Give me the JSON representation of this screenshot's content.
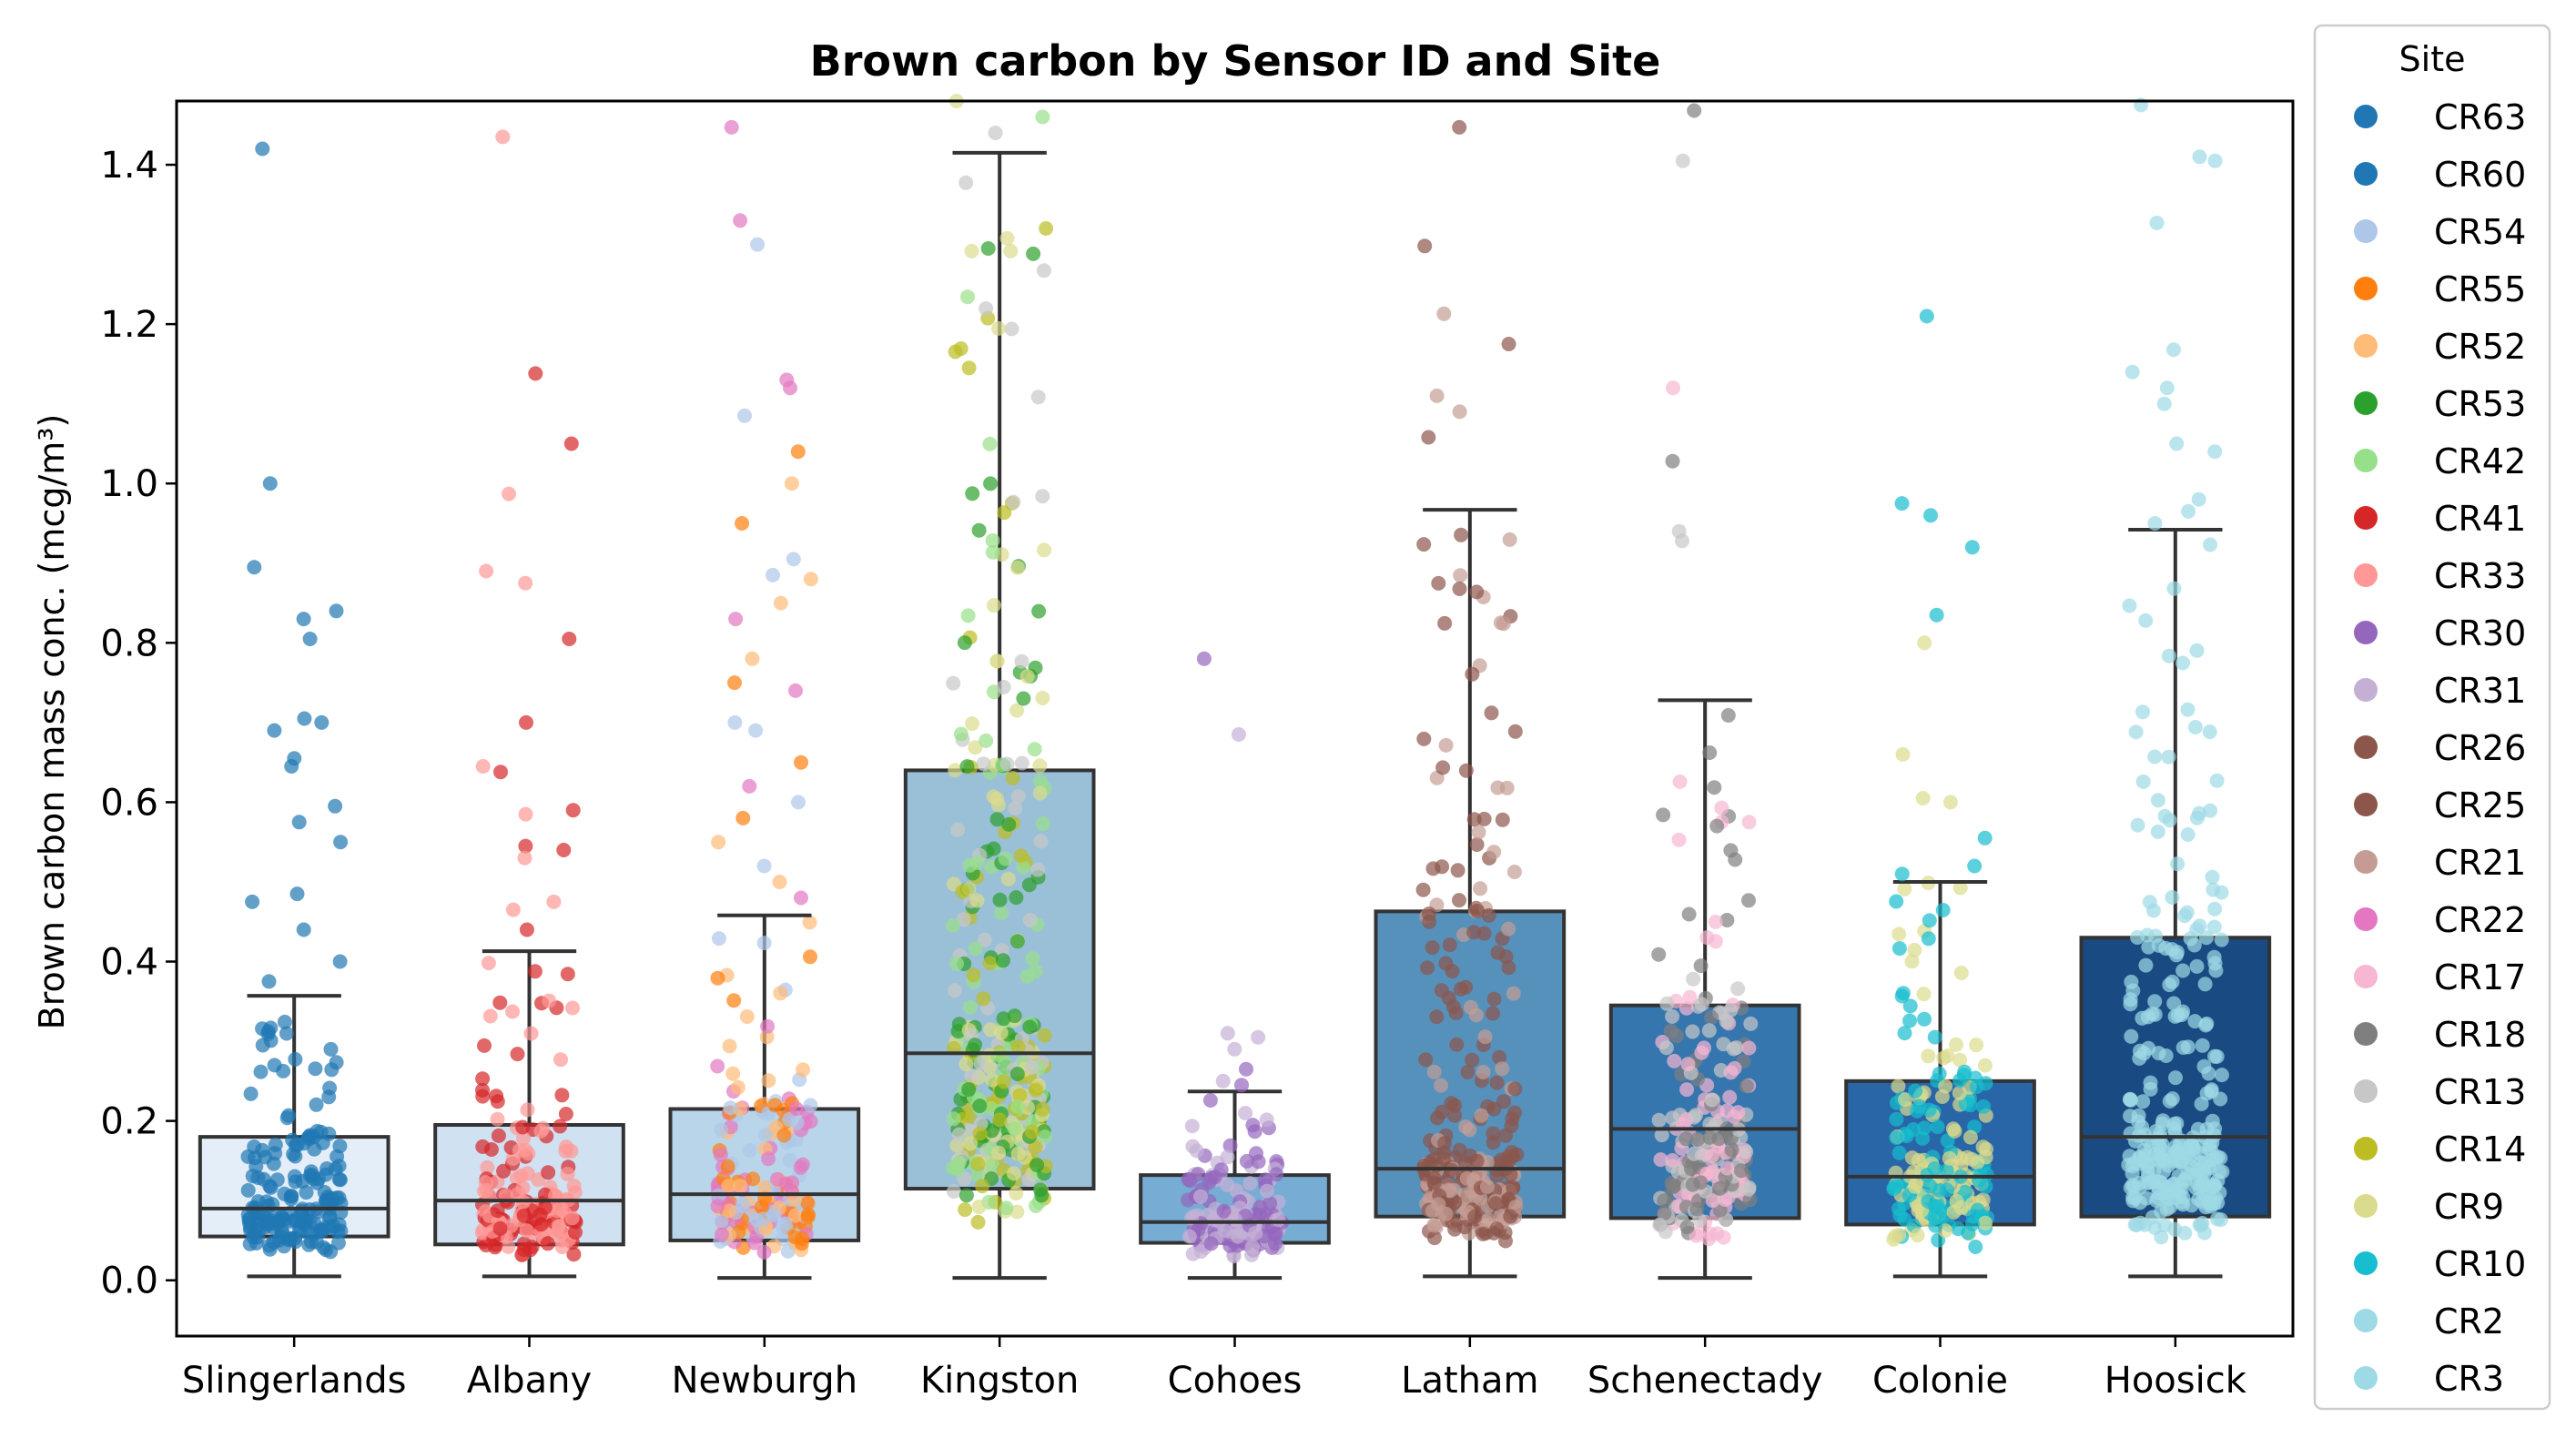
{
  "chart_data": {
    "type": "box",
    "title": "Brown carbon by Sensor ID and Site",
    "xlabel": "",
    "ylabel": "Brown carbon mass conc. (mcg/m³)",
    "ylim": [
      -0.07,
      1.48
    ],
    "yticks": [
      "0.0",
      "0.2",
      "0.4",
      "0.6",
      "0.8",
      "1.0",
      "1.2",
      "1.4"
    ],
    "categories": [
      "Slingerlands",
      "Albany",
      "Newburgh",
      "Kingston",
      "Cohoes",
      "Latham",
      "Schenectady",
      "Colonie",
      "Hoosick"
    ],
    "boxes": [
      {
        "site": "Slingerlands",
        "whisker_low": 0.005,
        "q1": 0.055,
        "median": 0.09,
        "q3": 0.18,
        "whisker_high": 0.357,
        "fill": "#e4eef8",
        "sensors": [
          "CR63",
          "CR60"
        ]
      },
      {
        "site": "Albany",
        "whisker_low": 0.005,
        "q1": 0.045,
        "median": 0.1,
        "q3": 0.195,
        "whisker_high": 0.413,
        "fill": "#d0e1f2",
        "sensors": [
          "CR41",
          "CR33"
        ]
      },
      {
        "site": "Newburgh",
        "whisker_low": 0.003,
        "q1": 0.05,
        "median": 0.108,
        "q3": 0.215,
        "whisker_high": 0.458,
        "fill": "#b9d5ea",
        "sensors": [
          "CR55",
          "CR52",
          "CR22",
          "CR54"
        ]
      },
      {
        "site": "Kingston",
        "whisker_low": 0.003,
        "q1": 0.115,
        "median": 0.285,
        "q3": 0.64,
        "whisker_high": 1.415,
        "fill": "#9ac0d8",
        "sensors": [
          "CR53",
          "CR42",
          "CR14",
          "CR9",
          "CR13"
        ]
      },
      {
        "site": "Cohoes",
        "whisker_low": 0.003,
        "q1": 0.047,
        "median": 0.073,
        "q3": 0.132,
        "whisker_high": 0.237,
        "fill": "#77acd4",
        "sensors": [
          "CR30",
          "CR31"
        ]
      },
      {
        "site": "Latham",
        "whisker_low": 0.005,
        "q1": 0.08,
        "median": 0.14,
        "q3": 0.463,
        "whisker_high": 0.967,
        "fill": "#5691bc",
        "sensors": [
          "CR26",
          "CR25",
          "CR21"
        ]
      },
      {
        "site": "Schenectady",
        "whisker_low": 0.003,
        "q1": 0.078,
        "median": 0.19,
        "q3": 0.345,
        "whisker_high": 0.728,
        "fill": "#3676ae",
        "sensors": [
          "CR17",
          "CR18",
          "CR13"
        ]
      },
      {
        "site": "Colonie",
        "whisker_low": 0.005,
        "q1": 0.07,
        "median": 0.13,
        "q3": 0.25,
        "whisker_high": 0.5,
        "fill": "#2866a8",
        "sensors": [
          "CR10",
          "CR9"
        ]
      },
      {
        "site": "Hoosick",
        "whisker_low": 0.005,
        "q1": 0.08,
        "median": 0.18,
        "q3": 0.43,
        "whisker_high": 0.942,
        "fill": "#1a4a82",
        "sensors": [
          "CR2",
          "CR3"
        ]
      }
    ],
    "outliers": [
      {
        "site": "Slingerlands",
        "values": [
          1.42,
          1.0,
          0.895,
          0.84,
          0.83,
          0.805,
          0.705,
          0.7,
          0.69,
          0.655,
          0.645,
          0.595,
          0.575,
          0.55,
          0.485,
          0.475,
          0.44,
          0.4,
          0.375
        ]
      },
      {
        "site": "Albany",
        "values": [
          1.435,
          1.138,
          1.05,
          0.987,
          0.89,
          0.875,
          0.805,
          0.7,
          0.645,
          0.638,
          0.59,
          0.585,
          0.545,
          0.54,
          0.53,
          0.475,
          0.465,
          0.44
        ]
      },
      {
        "site": "Newburgh",
        "values": [
          1.447,
          1.33,
          1.3,
          1.13,
          1.12,
          1.085,
          1.04,
          1.0,
          0.95,
          0.905,
          0.885,
          0.88,
          0.85,
          0.83,
          0.78,
          0.75,
          0.74,
          0.7,
          0.69,
          0.65,
          0.62,
          0.6,
          0.58,
          0.55,
          0.52,
          0.5,
          0.48
        ]
      },
      {
        "site": "Kingston",
        "values": [
          1.48,
          1.46,
          1.44
        ]
      },
      {
        "site": "Cohoes",
        "values": [
          0.78,
          0.685,
          0.31,
          0.305,
          0.29,
          0.265,
          0.25,
          0.245
        ]
      },
      {
        "site": "Latham",
        "values": [
          1.447,
          1.298,
          1.213,
          1.175,
          1.11,
          1.09,
          1.058
        ]
      },
      {
        "site": "Schenectady",
        "values": [
          1.468,
          1.405,
          1.12,
          1.028,
          0.94,
          0.928
        ]
      },
      {
        "site": "Colonie",
        "values": [
          1.21,
          0.975,
          0.96,
          0.92,
          0.835,
          0.8,
          0.66,
          0.605,
          0.6,
          0.555,
          0.52,
          0.51
        ]
      },
      {
        "site": "Hoosick",
        "values": [
          1.475,
          1.41,
          1.405,
          1.327,
          1.168,
          1.14,
          1.12,
          1.1,
          1.05,
          1.04,
          0.98,
          0.965,
          0.95
        ]
      }
    ],
    "legend": {
      "title": "Site",
      "placement": "outside-right",
      "entries": [
        {
          "label": "CR63",
          "color": "#1f77b4"
        },
        {
          "label": "CR60",
          "color": "#1f77b4"
        },
        {
          "label": "CR54",
          "color": "#aec7e8"
        },
        {
          "label": "CR55",
          "color": "#ff7f0e"
        },
        {
          "label": "CR52",
          "color": "#ffbb78"
        },
        {
          "label": "CR53",
          "color": "#2ca02c"
        },
        {
          "label": "CR42",
          "color": "#98df8a"
        },
        {
          "label": "CR41",
          "color": "#d62728"
        },
        {
          "label": "CR33",
          "color": "#ff9896"
        },
        {
          "label": "CR30",
          "color": "#9467bd"
        },
        {
          "label": "CR31",
          "color": "#c5b0d5"
        },
        {
          "label": "CR26",
          "color": "#8c564b"
        },
        {
          "label": "CR25",
          "color": "#8c564b"
        },
        {
          "label": "CR21",
          "color": "#c49c94"
        },
        {
          "label": "CR22",
          "color": "#e377c2"
        },
        {
          "label": "CR17",
          "color": "#f7b6d2"
        },
        {
          "label": "CR18",
          "color": "#7f7f7f"
        },
        {
          "label": "CR13",
          "color": "#c7c7c7"
        },
        {
          "label": "CR14",
          "color": "#bcbd22"
        },
        {
          "label": "CR9",
          "color": "#dbdb8d"
        },
        {
          "label": "CR10",
          "color": "#17becf"
        },
        {
          "label": "CR2",
          "color": "#9edae5"
        },
        {
          "label": "CR3",
          "color": "#9edae5"
        }
      ]
    }
  }
}
